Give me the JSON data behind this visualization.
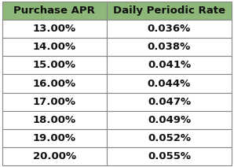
{
  "col1_header": "Purchase APR",
  "col2_header": "Daily Periodic Rate",
  "rows": [
    [
      "13.00%",
      "0.036%"
    ],
    [
      "14.00%",
      "0.038%"
    ],
    [
      "15.00%",
      "0.041%"
    ],
    [
      "16.00%",
      "0.044%"
    ],
    [
      "17.00%",
      "0.047%"
    ],
    [
      "18.00%",
      "0.049%"
    ],
    [
      "19.00%",
      "0.052%"
    ],
    [
      "20.00%",
      "0.055%"
    ]
  ],
  "header_bg": "#8db87a",
  "header_text_color": "#111111",
  "row_bg": "#ffffff",
  "row_text_color": "#111111",
  "border_color": "#888888",
  "font_size_header": 9.5,
  "font_size_row": 9.5,
  "fig_width": 2.98,
  "fig_height": 2.12
}
